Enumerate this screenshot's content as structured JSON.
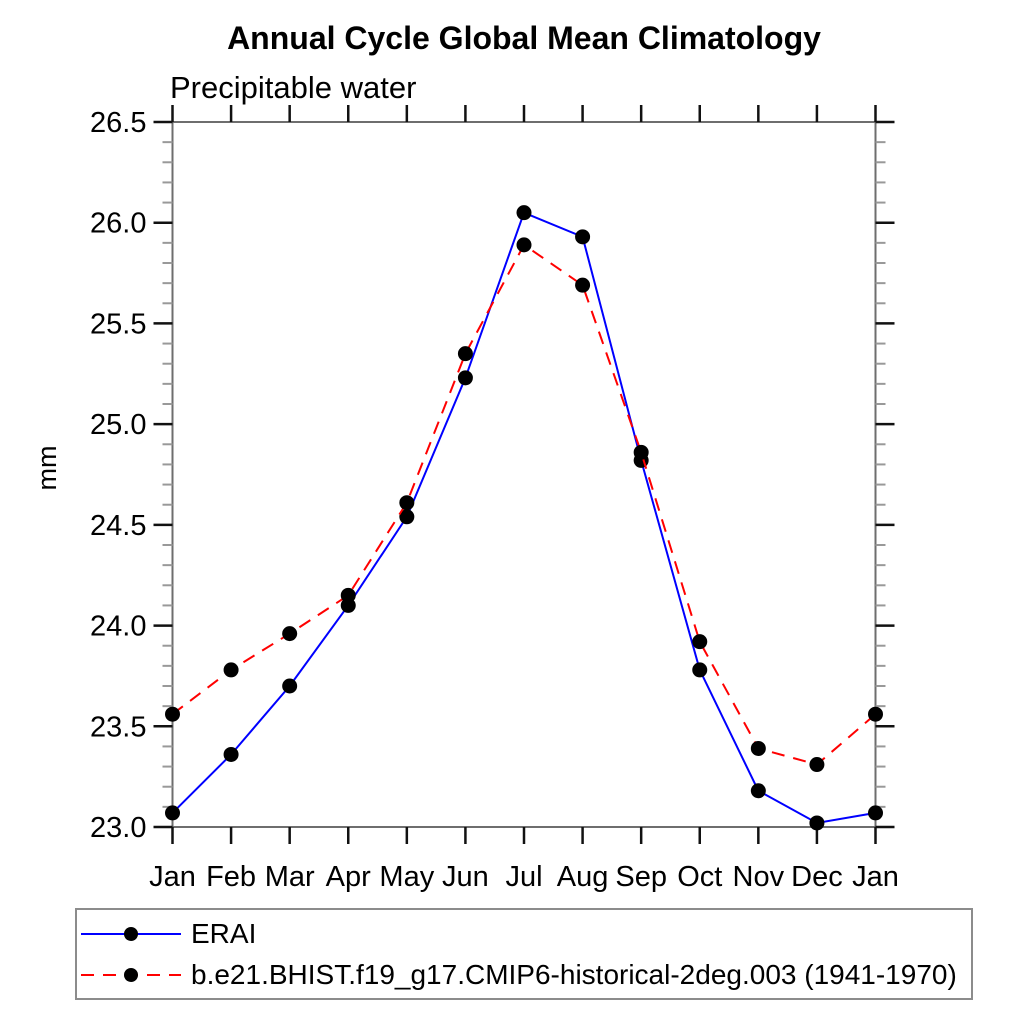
{
  "chart_data": {
    "type": "line",
    "title": "Annual Cycle Global Mean Climatology",
    "subtitle": "Precipitable water",
    "ylabel": "mm",
    "xlabel": "",
    "categories": [
      "Jan",
      "Feb",
      "Mar",
      "Apr",
      "May",
      "Jun",
      "Jul",
      "Aug",
      "Sep",
      "Oct",
      "Nov",
      "Dec",
      "Jan"
    ],
    "ylim": [
      23.0,
      26.5
    ],
    "ytick_major_interval": 0.5,
    "ytick_minor_interval": 0.1,
    "ytick_labels": [
      "23.0",
      "23.5",
      "24.0",
      "24.5",
      "25.0",
      "25.5",
      "26.0",
      "26.5"
    ],
    "grid": false,
    "legend_position": "bottom-left-box",
    "marker": {
      "shape": "circle",
      "color": "#000000"
    },
    "series": [
      {
        "name": "ERAI",
        "color": "#0000ff",
        "style": "solid",
        "values": [
          23.07,
          23.36,
          23.7,
          24.1,
          24.54,
          25.23,
          26.05,
          25.93,
          24.82,
          23.78,
          23.18,
          23.02,
          23.07
        ]
      },
      {
        "name": "b.e21.BHIST.f19_g17.CMIP6-historical-2deg.003 (1941-1970)",
        "color": "#ff0000",
        "style": "dashed",
        "values": [
          23.56,
          23.78,
          23.96,
          24.15,
          24.61,
          25.35,
          25.89,
          25.69,
          24.86,
          23.92,
          23.39,
          23.31,
          23.56
        ]
      }
    ]
  }
}
